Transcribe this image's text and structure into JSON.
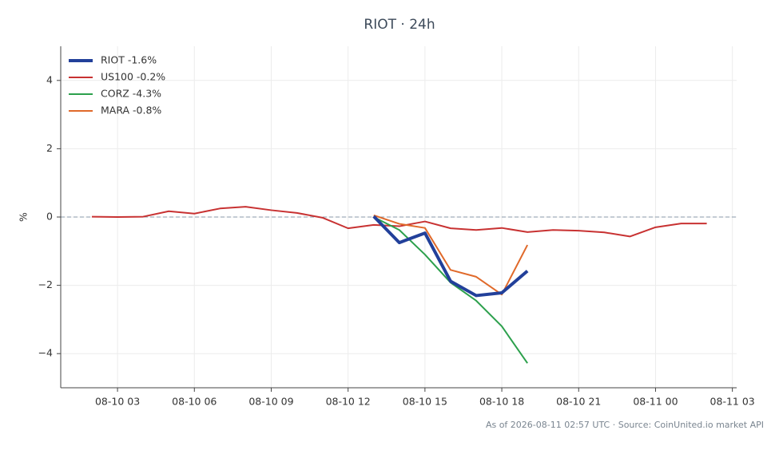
{
  "chart_data": {
    "type": "line",
    "title": "RIOT · 24h",
    "y_label": "%",
    "footer": "As of 2026-08-11 02:57 UTC · Source: CoinUnited.io market API",
    "x": [
      "08-10 02",
      "08-10 03",
      "08-10 04",
      "08-10 05",
      "08-10 06",
      "08-10 07",
      "08-10 08",
      "08-10 09",
      "08-10 10",
      "08-10 11",
      "08-10 12",
      "08-10 13",
      "08-10 14",
      "08-10 15",
      "08-10 16",
      "08-10 17",
      "08-10 18",
      "08-10 19",
      "08-10 20",
      "08-10 21",
      "08-10 22",
      "08-10 23",
      "08-11 00",
      "08-11 01",
      "08-11 02"
    ],
    "series": [
      {
        "name": "RIOT -1.6%",
        "color": "#22409a",
        "width": 4,
        "values": [
          null,
          null,
          null,
          null,
          null,
          null,
          null,
          null,
          null,
          null,
          null,
          0.02,
          -0.75,
          -0.47,
          -1.88,
          -2.3,
          -2.22,
          -1.58,
          null,
          null,
          null,
          null,
          null,
          null,
          null
        ]
      },
      {
        "name": "US100 -0.2%",
        "color": "#c83232",
        "width": 2,
        "values": [
          0.01,
          0.0,
          0.01,
          0.17,
          0.1,
          0.25,
          0.3,
          0.2,
          0.12,
          -0.02,
          -0.33,
          -0.23,
          -0.27,
          -0.13,
          -0.33,
          -0.38,
          -0.32,
          -0.44,
          -0.38,
          -0.4,
          -0.45,
          -0.57,
          -0.3,
          -0.19,
          -0.19
        ]
      },
      {
        "name": "CORZ -4.3%",
        "color": "#2ca04c",
        "width": 2,
        "values": [
          null,
          null,
          null,
          null,
          null,
          null,
          null,
          null,
          null,
          null,
          null,
          0.0,
          -0.38,
          -1.1,
          -1.92,
          -2.45,
          -3.2,
          -4.28,
          null,
          null,
          null,
          null,
          null,
          null,
          null
        ]
      },
      {
        "name": "MARA -0.8%",
        "color": "#e0692a",
        "width": 2,
        "values": [
          null,
          null,
          null,
          null,
          null,
          null,
          null,
          null,
          null,
          null,
          null,
          0.05,
          -0.2,
          -0.32,
          -1.55,
          -1.75,
          -2.27,
          -0.82,
          null,
          null,
          null,
          null,
          null,
          null,
          null
        ]
      }
    ],
    "xlim": [
      "08-10 00:47",
      "08-11 03:10"
    ],
    "xticks": [
      "08-10 03",
      "08-10 06",
      "08-10 09",
      "08-10 12",
      "08-10 15",
      "08-10 18",
      "08-10 21",
      "08-11 00",
      "08-11 03"
    ],
    "ylim": [
      -5,
      5
    ],
    "yticks": [
      {
        "value": -4,
        "label": "−4"
      },
      {
        "value": -2,
        "label": "−2"
      },
      0,
      2,
      4
    ],
    "reference_line": 0,
    "grid": true,
    "legend": "upper-left"
  }
}
